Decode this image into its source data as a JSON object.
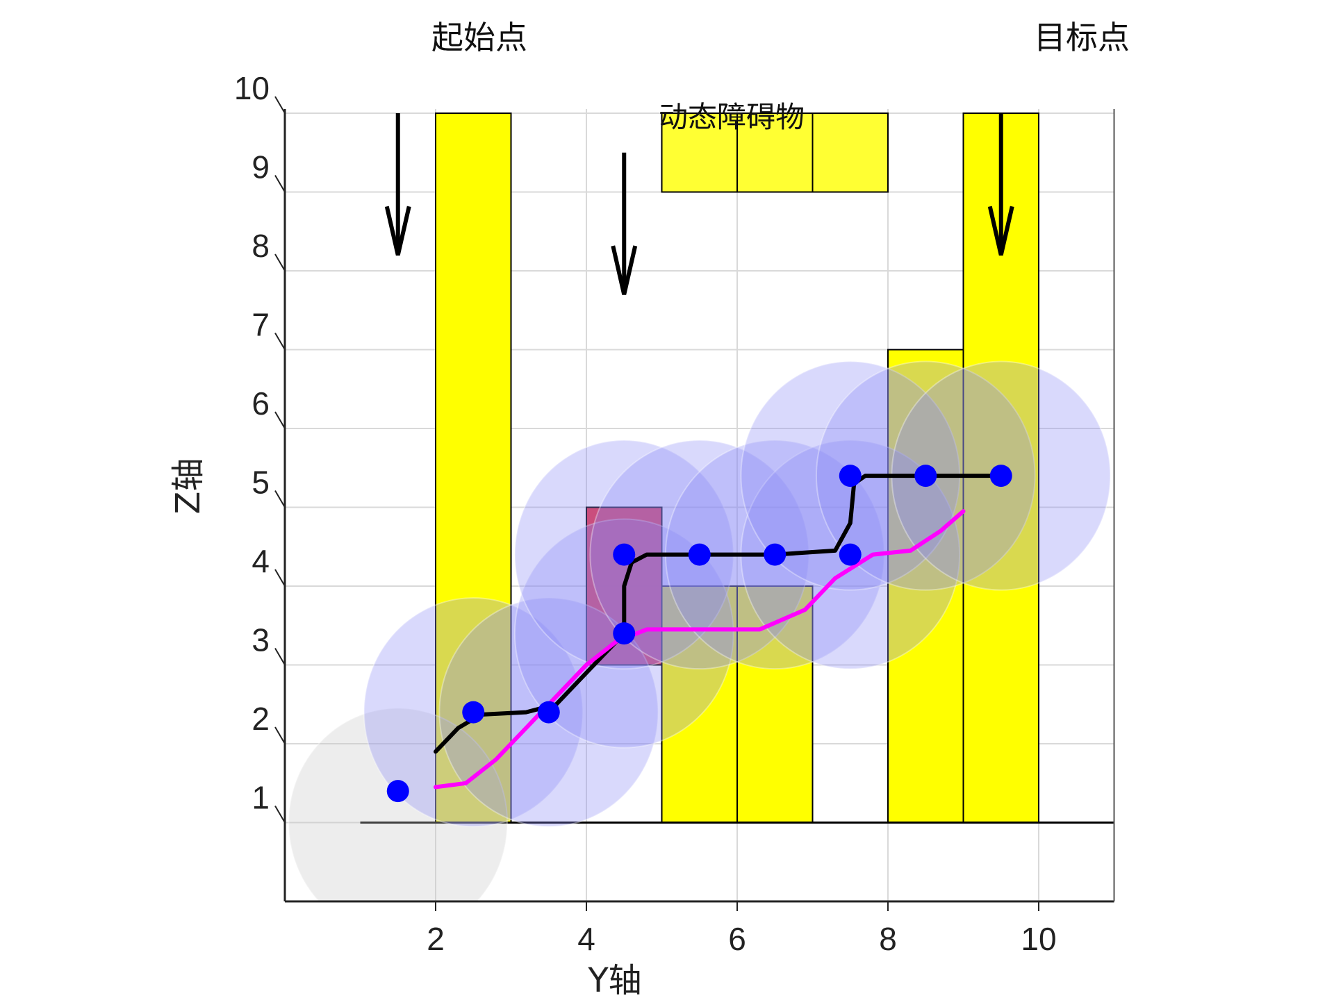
{
  "chart_data": {
    "type": "scatter",
    "xlabel": "Y轴",
    "ylabel": "Z轴",
    "xlim": [
      0,
      11
    ],
    "ylim": [
      0,
      10
    ],
    "xticks": [
      "2",
      "4",
      "6",
      "8",
      "10"
    ],
    "yticks": [
      "1",
      "2",
      "3",
      "4",
      "5",
      "6",
      "7",
      "8",
      "9",
      "10"
    ],
    "grid": true,
    "annotations": {
      "start_label": "起始点",
      "target_label": "目标点",
      "dynamic_obstacle_label": "动态障碍物"
    },
    "arrows": [
      {
        "x": 1.5,
        "z_from": 10,
        "z_to": 8.2
      },
      {
        "x": 4.5,
        "z_from": 9.5,
        "z_to": 7.7
      },
      {
        "x": 9.5,
        "z_from": 10,
        "z_to": 8.2
      }
    ],
    "static_obstacles": [
      {
        "x0": 2,
        "x1": 3,
        "z0": 1,
        "z1": 10,
        "color": "#ffff00"
      },
      {
        "x0": 5,
        "x1": 6,
        "z0": 1,
        "z1": 4,
        "color": "#ffff00"
      },
      {
        "x0": 6,
        "x1": 7,
        "z0": 1,
        "z1": 4,
        "color": "#ffff00"
      },
      {
        "x0": 8,
        "x1": 9,
        "z0": 1,
        "z1": 7,
        "color": "#ffff00"
      },
      {
        "x0": 9,
        "x1": 10,
        "z0": 1,
        "z1": 10,
        "color": "#ffff00"
      }
    ],
    "dynamic_obstacles": [
      {
        "x0": 5,
        "x1": 6,
        "z0": 9,
        "z1": 10,
        "color": "#ffff33"
      },
      {
        "x0": 6,
        "x1": 7,
        "z0": 9,
        "z1": 10,
        "color": "#ffff33"
      },
      {
        "x0": 7,
        "x1": 8,
        "z0": 9,
        "z1": 10,
        "color": "#ffff33"
      }
    ],
    "red_obstacle": {
      "x0": 4,
      "x1": 5,
      "z0": 3,
      "z1": 5,
      "color": "#e8283a"
    },
    "ground_line": {
      "x0": 1,
      "x1": 11,
      "z": 1
    },
    "spheres": [
      {
        "x": 1.5,
        "z": 1,
        "r": 1.45,
        "color": "#c8c8c8"
      },
      {
        "x": 2.5,
        "z": 2.4,
        "r": 1.45,
        "color": "#8a8af5"
      },
      {
        "x": 3.5,
        "z": 2.4,
        "r": 1.45,
        "color": "#8a8af5"
      },
      {
        "x": 4.5,
        "z": 3.4,
        "r": 1.45,
        "color": "#8a8af5"
      },
      {
        "x": 4.5,
        "z": 4.4,
        "r": 1.45,
        "color": "#8a8af5"
      },
      {
        "x": 5.5,
        "z": 4.4,
        "r": 1.45,
        "color": "#8a8af5"
      },
      {
        "x": 6.5,
        "z": 4.4,
        "r": 1.45,
        "color": "#8a8af5"
      },
      {
        "x": 7.5,
        "z": 4.4,
        "r": 1.45,
        "color": "#8a8af5"
      },
      {
        "x": 7.5,
        "z": 5.4,
        "r": 1.45,
        "color": "#8a8af5"
      },
      {
        "x": 8.5,
        "z": 5.4,
        "r": 1.45,
        "color": "#8a8af5"
      },
      {
        "x": 9.5,
        "z": 5.4,
        "r": 1.45,
        "color": "#8a8af5"
      }
    ],
    "waypoints": [
      {
        "x": 1.5,
        "z": 1.4
      },
      {
        "x": 2.5,
        "z": 2.4
      },
      {
        "x": 3.5,
        "z": 2.4
      },
      {
        "x": 4.5,
        "z": 3.4
      },
      {
        "x": 4.5,
        "z": 4.4
      },
      {
        "x": 5.5,
        "z": 4.4
      },
      {
        "x": 6.5,
        "z": 4.4
      },
      {
        "x": 7.5,
        "z": 4.4
      },
      {
        "x": 7.5,
        "z": 5.4
      },
      {
        "x": 8.5,
        "z": 5.4
      },
      {
        "x": 9.5,
        "z": 5.4
      }
    ],
    "series": [
      {
        "color": "#000000",
        "points": [
          [
            2,
            1.9
          ],
          [
            2.3,
            2.2
          ],
          [
            2.6,
            2.37
          ],
          [
            3.2,
            2.4
          ],
          [
            3.6,
            2.5
          ],
          [
            3.9,
            2.8
          ],
          [
            4.2,
            3.1
          ],
          [
            4.5,
            3.4
          ],
          [
            4.5,
            4.0
          ],
          [
            4.6,
            4.3
          ],
          [
            4.8,
            4.4
          ],
          [
            5.5,
            4.4
          ],
          [
            6.5,
            4.4
          ],
          [
            7.3,
            4.45
          ],
          [
            7.5,
            4.8
          ],
          [
            7.55,
            5.3
          ],
          [
            7.7,
            5.4
          ],
          [
            8.5,
            5.4
          ],
          [
            9.5,
            5.4
          ]
        ]
      },
      {
        "color": "#ff00ff",
        "points": [
          [
            2,
            1.45
          ],
          [
            2.4,
            1.5
          ],
          [
            2.8,
            1.8
          ],
          [
            3.2,
            2.2
          ],
          [
            3.6,
            2.6
          ],
          [
            4.0,
            3.0
          ],
          [
            4.4,
            3.3
          ],
          [
            4.8,
            3.45
          ],
          [
            5.5,
            3.45
          ],
          [
            6.3,
            3.45
          ],
          [
            6.9,
            3.7
          ],
          [
            7.3,
            4.1
          ],
          [
            7.8,
            4.4
          ],
          [
            8.3,
            4.45
          ],
          [
            8.7,
            4.7
          ],
          [
            9.0,
            4.95
          ]
        ]
      }
    ]
  }
}
